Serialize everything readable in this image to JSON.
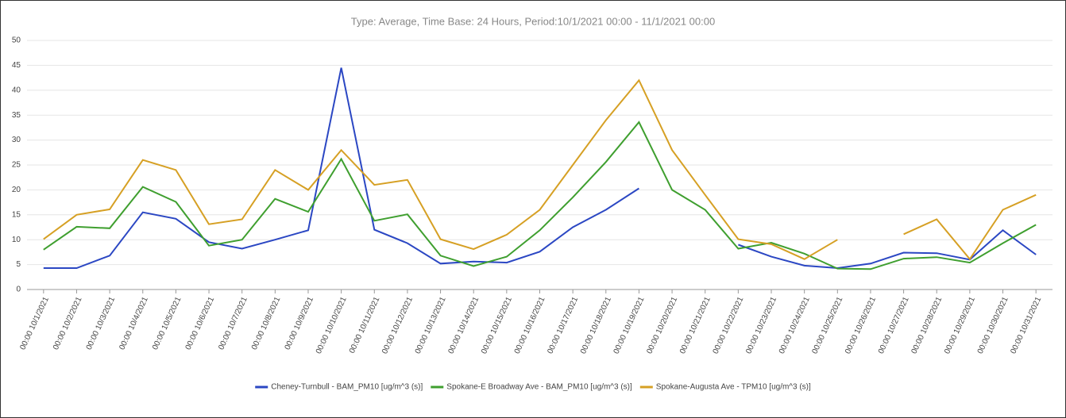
{
  "chart_data": {
    "type": "line",
    "title": "Type: Average, Time Base: 24 Hours, Period:10/1/2021 00:00 - 11/1/2021 00:00",
    "categories": [
      "00:00 10/1/2021",
      "00:00 10/2/2021",
      "00:00 10/3/2021",
      "00:00 10/4/2021",
      "00:00 10/5/2021",
      "00:00 10/6/2021",
      "00:00 10/7/2021",
      "00:00 10/8/2021",
      "00:00 10/9/2021",
      "00:00 10/10/2021",
      "00:00 10/11/2021",
      "00:00 10/12/2021",
      "00:00 10/13/2021",
      "00:00 10/14/2021",
      "00:00 10/15/2021",
      "00:00 10/16/2021",
      "00:00 10/17/2021",
      "00:00 10/18/2021",
      "00:00 10/19/2021",
      "00:00 10/20/2021",
      "00:00 10/21/2021",
      "00:00 10/22/2021",
      "00:00 10/23/2021",
      "00:00 10/24/2021",
      "00:00 10/25/2021",
      "00:00 10/26/2021",
      "00:00 10/27/2021",
      "00:00 10/28/2021",
      "00:00 10/29/2021",
      "00:00 10/30/2021",
      "00:00 10/31/2021"
    ],
    "series": [
      {
        "name": "Cheney-Turnbull - BAM_PM10 [ug/m^3 (s)]",
        "color": "#2b47c3",
        "values": [
          4.3,
          4.3,
          6.8,
          15.5,
          14.2,
          9.5,
          8.2,
          10,
          11.9,
          44.5,
          12,
          9.3,
          5.2,
          5.6,
          5.4,
          7.6,
          12.5,
          16,
          20.3,
          null,
          null,
          9,
          6.6,
          4.8,
          4.3,
          5.2,
          7.4,
          7.3,
          6,
          11.9,
          7
        ]
      },
      {
        "name": "Spokane-E Broadway Ave - BAM_PM10 [ug/m^3 (s)]",
        "color": "#3f9f2f",
        "values": [
          8,
          12.6,
          12.3,
          20.6,
          17.6,
          8.8,
          10,
          18.2,
          15.6,
          26.2,
          13.8,
          15.1,
          6.8,
          4.7,
          6.6,
          11.9,
          18.5,
          25.6,
          33.6,
          20,
          16,
          8.2,
          9.4,
          7.2,
          4.2,
          4.1,
          6.2,
          6.5,
          5.4,
          9.3,
          13
        ]
      },
      {
        "name": "Spokane-Augusta Ave - TPM10 [ug/m^3 (s)]",
        "color": "#d6a024",
        "values": [
          10.1,
          15,
          16.1,
          26,
          24,
          13.1,
          14.1,
          24,
          20,
          28,
          21,
          22,
          10.1,
          8.1,
          11,
          16,
          25,
          34,
          42,
          28,
          19,
          10.1,
          9.1,
          6.1,
          10,
          null,
          11.1,
          14.1,
          6.1,
          16,
          19
        ]
      }
    ],
    "ylim": [
      0,
      50
    ],
    "yticks": [
      0,
      5,
      10,
      15,
      20,
      25,
      30,
      35,
      40,
      45,
      50
    ],
    "grid": true,
    "legend": "bottom"
  }
}
